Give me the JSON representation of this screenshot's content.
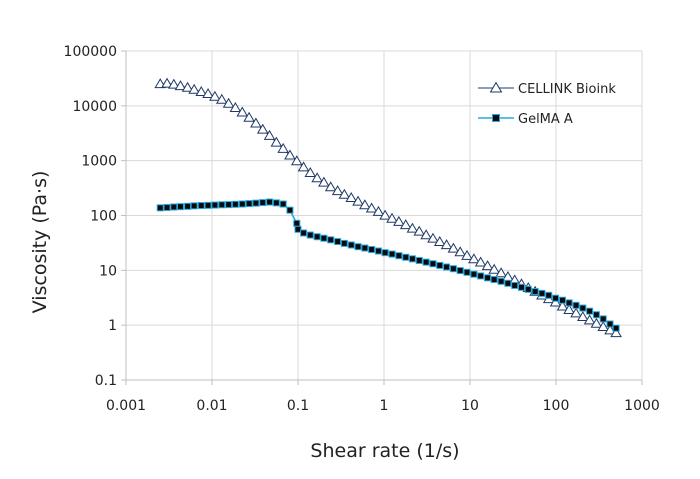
{
  "chart_data": {
    "type": "scatter",
    "title": "",
    "xlabel": "Shear rate (1/s)",
    "ylabel": "Viscosity (Pa·s)",
    "x_scale": "log",
    "y_scale": "log",
    "xlim": [
      0.001,
      1000
    ],
    "ylim": [
      0.1,
      100000
    ],
    "x_ticks": [
      "0.001",
      "0.01",
      "0.1",
      "1",
      "10",
      "100",
      "1000"
    ],
    "y_ticks": [
      "0.1",
      "1",
      "10",
      "100",
      "1000",
      "10000",
      "100000"
    ],
    "grid": true,
    "legend_position": "top-right",
    "colors": {
      "cellink": "#1f3864",
      "gelma_line": "#29a8e0",
      "gelma_marker": "#0a0a0a",
      "grid": "#d9d9d9",
      "axis": "#bfbfbf"
    },
    "series": [
      {
        "name": "CELLINK Bioink",
        "marker": "open-triangle",
        "x": [
          0.0025,
          0.003,
          0.0036,
          0.0043,
          0.0052,
          0.0062,
          0.0075,
          0.009,
          0.0108,
          0.013,
          0.0156,
          0.0187,
          0.0225,
          0.027,
          0.0324,
          0.0389,
          0.0467,
          0.056,
          0.0672,
          0.0806,
          0.0968,
          0.116,
          0.139,
          0.167,
          0.2,
          0.24,
          0.289,
          0.346,
          0.416,
          0.499,
          0.599,
          0.718,
          0.862,
          1.03,
          1.24,
          1.49,
          1.79,
          2.14,
          2.57,
          3.09,
          3.71,
          4.45,
          5.34,
          6.41,
          7.69,
          9.23,
          11.1,
          13.3,
          16.0,
          19.1,
          23.0,
          27.6,
          33.1,
          39.7,
          47.6,
          57.2,
          68.6,
          82.3,
          98.8,
          119,
          142,
          171,
          205,
          246,
          295,
          354,
          425,
          500
        ],
        "y": [
          25000,
          25500,
          24500,
          23000,
          21500,
          19800,
          18000,
          16500,
          14700,
          13000,
          11000,
          9200,
          7600,
          6100,
          4800,
          3700,
          2850,
          2150,
          1650,
          1250,
          980,
          760,
          600,
          480,
          400,
          330,
          280,
          240,
          210,
          180,
          155,
          135,
          117,
          100,
          88,
          77,
          67,
          58,
          51,
          44,
          38,
          33,
          29,
          25,
          21.5,
          18.5,
          16,
          14,
          12,
          10.3,
          8.9,
          7.6,
          6.6,
          5.6,
          4.8,
          4.1,
          3.5,
          3.0,
          2.6,
          2.2,
          1.9,
          1.65,
          1.42,
          1.23,
          1.07,
          0.93,
          0.81,
          0.72
        ]
      },
      {
        "name": "GelMA A",
        "marker": "filled-square",
        "x": [
          0.0025,
          0.003,
          0.0036,
          0.0043,
          0.0052,
          0.0062,
          0.0075,
          0.009,
          0.0108,
          0.013,
          0.0156,
          0.0187,
          0.0225,
          0.027,
          0.0324,
          0.0389,
          0.0467,
          0.056,
          0.0672,
          0.0806,
          0.0968,
          0.1,
          0.116,
          0.139,
          0.167,
          0.2,
          0.24,
          0.289,
          0.346,
          0.416,
          0.499,
          0.599,
          0.718,
          0.862,
          1.03,
          1.24,
          1.49,
          1.79,
          2.14,
          2.57,
          3.09,
          3.71,
          4.45,
          5.34,
          6.41,
          7.69,
          9.23,
          11.1,
          13.3,
          16.0,
          19.1,
          23.0,
          27.6,
          33.1,
          39.7,
          47.6,
          57.2,
          68.6,
          82.3,
          98.8,
          119,
          142,
          171,
          205,
          246,
          295,
          354,
          425,
          500
        ],
        "y": [
          138,
          140,
          143,
          145,
          147,
          150,
          152,
          153,
          155,
          157,
          158,
          160,
          162,
          165,
          168,
          172,
          176,
          170,
          162,
          125,
          72,
          56,
          48,
          44,
          41,
          38.5,
          36,
          33.5,
          31,
          29,
          27,
          25.5,
          24,
          22.5,
          21,
          19.8,
          18.5,
          17.3,
          16.2,
          15.1,
          14.1,
          13.2,
          12.3,
          11.5,
          10.7,
          9.9,
          9.2,
          8.5,
          7.9,
          7.3,
          6.8,
          6.3,
          5.8,
          5.3,
          4.9,
          4.5,
          4.1,
          3.8,
          3.5,
          3.1,
          2.85,
          2.55,
          2.3,
          2.05,
          1.8,
          1.55,
          1.3,
          1.05,
          0.88
        ]
      }
    ]
  }
}
